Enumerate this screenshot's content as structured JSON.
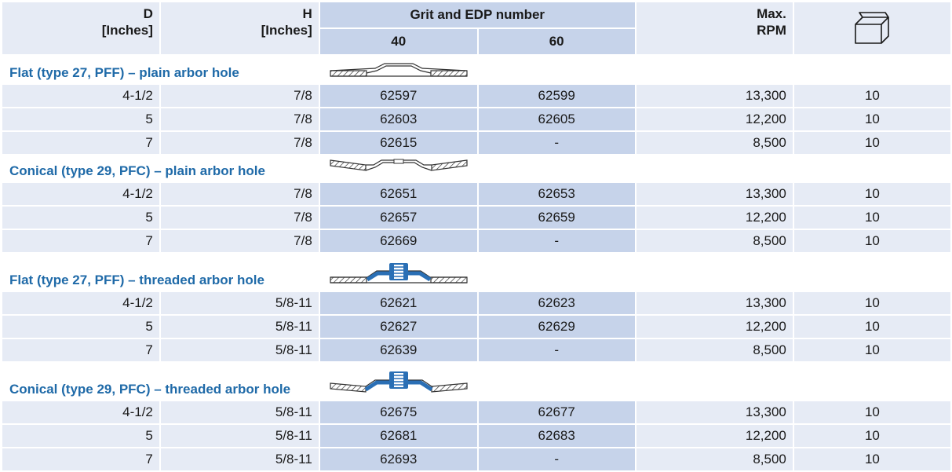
{
  "header": {
    "d_label": "D",
    "d_unit": "[Inches]",
    "h_label": "H",
    "h_unit": "[Inches]",
    "grit_group": "Grit and EDP number",
    "grit_40": "40",
    "grit_60": "60",
    "rpm_line1": "Max.",
    "rpm_line2": "RPM",
    "pack_icon": "box-icon"
  },
  "sections": [
    {
      "title": "Flat (type 27, PFF) – plain arbor hole",
      "diagram": "flat-plain-disc-icon",
      "rows": [
        {
          "d": "4-1/2",
          "h": "7/8",
          "g40": "62597",
          "g60": "62599",
          "rpm": "13,300",
          "qty": "10"
        },
        {
          "d": "5",
          "h": "7/8",
          "g40": "62603",
          "g60": "62605",
          "rpm": "12,200",
          "qty": "10"
        },
        {
          "d": "7",
          "h": "7/8",
          "g40": "62615",
          "g60": "-",
          "rpm": "8,500",
          "qty": "10"
        }
      ]
    },
    {
      "title": "Conical (type 29, PFC) – plain arbor hole",
      "diagram": "conical-plain-disc-icon",
      "rows": [
        {
          "d": "4-1/2",
          "h": "7/8",
          "g40": "62651",
          "g60": "62653",
          "rpm": "13,300",
          "qty": "10"
        },
        {
          "d": "5",
          "h": "7/8",
          "g40": "62657",
          "g60": "62659",
          "rpm": "12,200",
          "qty": "10"
        },
        {
          "d": "7",
          "h": "7/8",
          "g40": "62669",
          "g60": "-",
          "rpm": "8,500",
          "qty": "10"
        }
      ]
    },
    {
      "title": "Flat (type 27, PFF) – threaded arbor hole",
      "diagram": "flat-threaded-disc-icon",
      "rows": [
        {
          "d": "4-1/2",
          "h": "5/8-11",
          "g40": "62621",
          "g60": "62623",
          "rpm": "13,300",
          "qty": "10"
        },
        {
          "d": "5",
          "h": "5/8-11",
          "g40": "62627",
          "g60": "62629",
          "rpm": "12,200",
          "qty": "10"
        },
        {
          "d": "7",
          "h": "5/8-11",
          "g40": "62639",
          "g60": "-",
          "rpm": "8,500",
          "qty": "10"
        }
      ]
    },
    {
      "title": "Conical (type 29, PFC) – threaded arbor hole",
      "diagram": "conical-threaded-disc-icon",
      "rows": [
        {
          "d": "4-1/2",
          "h": "5/8-11",
          "g40": "62675",
          "g60": "62677",
          "rpm": "13,300",
          "qty": "10"
        },
        {
          "d": "5",
          "h": "5/8-11",
          "g40": "62681",
          "g60": "62683",
          "rpm": "12,200",
          "qty": "10"
        },
        {
          "d": "7",
          "h": "5/8-11",
          "g40": "62693",
          "g60": "-",
          "rpm": "8,500",
          "qty": "10"
        }
      ]
    }
  ],
  "colors": {
    "section_title": "#1f6aa8",
    "header_bg": "#e6ebf5",
    "grit_bg": "#c6d3ea",
    "threaded_hub": "#2a6fb5"
  }
}
